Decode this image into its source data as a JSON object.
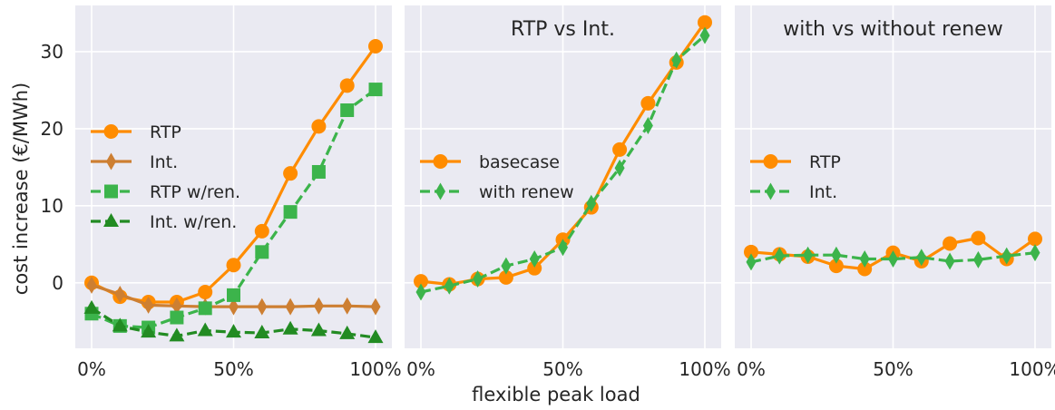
{
  "chart_data": {
    "type": "line",
    "xlabel": "flexible peak load",
    "ylabel": "cost increase (€/MWh)",
    "x": [
      0,
      10,
      20,
      30,
      40,
      50,
      60,
      70,
      80,
      90,
      100
    ],
    "xticks": [
      0,
      50,
      100
    ],
    "xtick_labels": [
      "0%",
      "50%",
      "100%"
    ],
    "yticks": [
      0,
      10,
      20,
      30
    ],
    "ylim": [
      -8.5,
      36
    ],
    "grid": true,
    "panels": [
      {
        "title": "",
        "legend_position": "center-left",
        "series": [
          {
            "name": "RTP",
            "color": "#ff8c00",
            "marker": "circle",
            "dashed": false,
            "values": [
              0,
              -1.8,
              -2.5,
              -2.5,
              -1.2,
              2.3,
              6.7,
              14.2,
              20.3,
              25.6,
              30.7
            ]
          },
          {
            "name": "Int.",
            "color": "#cd7f32",
            "marker": "thin-diamond",
            "dashed": false,
            "values": [
              -0.3,
              -1.5,
              -2.9,
              -3.0,
              -3.1,
              -3.1,
              -3.1,
              -3.1,
              -3.0,
              -3.0,
              -3.1
            ]
          },
          {
            "name": "RTP w/ren.",
            "color": "#3cb44b",
            "marker": "square",
            "dashed": true,
            "values": [
              -4.0,
              -5.6,
              -5.8,
              -4.5,
              -3.3,
              -1.6,
              4.0,
              9.2,
              14.4,
              22.4,
              25.1
            ]
          },
          {
            "name": "Int. w/ren.",
            "color": "#228b22",
            "marker": "triangle",
            "dashed": true,
            "values": [
              -3.3,
              -5.6,
              -6.4,
              -6.9,
              -6.2,
              -6.4,
              -6.5,
              -6.0,
              -6.2,
              -6.6,
              -7.1
            ]
          }
        ]
      },
      {
        "title": "RTP vs Int.",
        "legend_position": "center-left",
        "series": [
          {
            "name": "basecase",
            "color": "#ff8c00",
            "marker": "circle",
            "dashed": false,
            "values": [
              0.2,
              -0.2,
              0.5,
              0.7,
              1.9,
              5.6,
              9.8,
              17.3,
              23.3,
              28.6,
              33.8
            ]
          },
          {
            "name": "with renew",
            "color": "#3cb44b",
            "marker": "thin-diamond",
            "dashed": true,
            "values": [
              -1.2,
              -0.4,
              0.5,
              2.2,
              3.1,
              4.6,
              10.3,
              14.9,
              20.4,
              28.9,
              32.1
            ]
          }
        ]
      },
      {
        "title": "with vs without renew",
        "legend_position": "center-left",
        "series": [
          {
            "name": "RTP",
            "color": "#ff8c00",
            "marker": "circle",
            "dashed": false,
            "values": [
              4.0,
              3.7,
              3.4,
              2.2,
              1.8,
              3.9,
              2.8,
              5.1,
              5.8,
              3.1,
              5.7
            ]
          },
          {
            "name": "Int.",
            "color": "#3cb44b",
            "marker": "thin-diamond",
            "dashed": true,
            "values": [
              2.7,
              3.5,
              3.6,
              3.6,
              3.1,
              3.1,
              3.3,
              2.8,
              3.0,
              3.5,
              3.9
            ]
          }
        ]
      }
    ]
  }
}
